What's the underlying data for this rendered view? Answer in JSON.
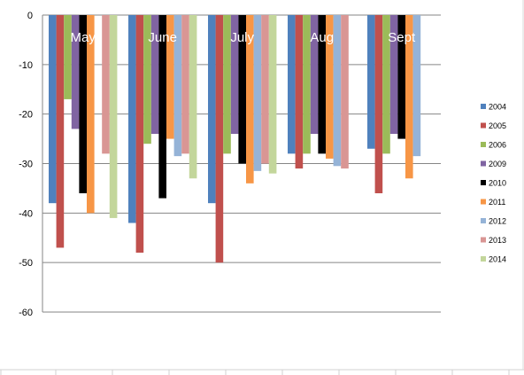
{
  "chart_data": {
    "type": "bar",
    "categories": [
      "May",
      "June",
      "July",
      "Aug",
      "Sept"
    ],
    "series": [
      {
        "name": "2004",
        "color": "#4F81BD",
        "values": [
          -38,
          -42,
          -38,
          -28,
          -27
        ]
      },
      {
        "name": "2005",
        "color": "#C0504D",
        "values": [
          -47,
          -48,
          -50,
          -31,
          -36
        ]
      },
      {
        "name": "2006",
        "color": "#9BBB59",
        "values": [
          -17,
          -26,
          -28,
          -28,
          -28
        ]
      },
      {
        "name": "2009",
        "color": "#8064A2",
        "values": [
          -23,
          -24,
          -24,
          -24,
          -24
        ]
      },
      {
        "name": "2010",
        "color": "#000000",
        "values": [
          -36,
          -37,
          -30,
          -28,
          -25
        ]
      },
      {
        "name": "2011",
        "color": "#F79646",
        "values": [
          -40,
          -25,
          -34,
          -29,
          -33
        ]
      },
      {
        "name": "2012",
        "color": "#95B3D7",
        "values": [
          null,
          -28.5,
          -31.5,
          -30.5,
          -28.5
        ]
      },
      {
        "name": "2013",
        "color": "#D99694",
        "values": [
          -28,
          -28,
          -30,
          -31,
          null
        ]
      },
      {
        "name": "2014",
        "color": "#C3D69B",
        "values": [
          -41,
          -33,
          -32,
          null,
          null
        ]
      }
    ],
    "ylim": [
      -60,
      0
    ],
    "yticks": [
      "0",
      "-10",
      "-20",
      "-30",
      "-40",
      "-50",
      "-60"
    ],
    "grid": true,
    "legend": "right",
    "title": "",
    "xlabel": "",
    "ylabel": ""
  }
}
